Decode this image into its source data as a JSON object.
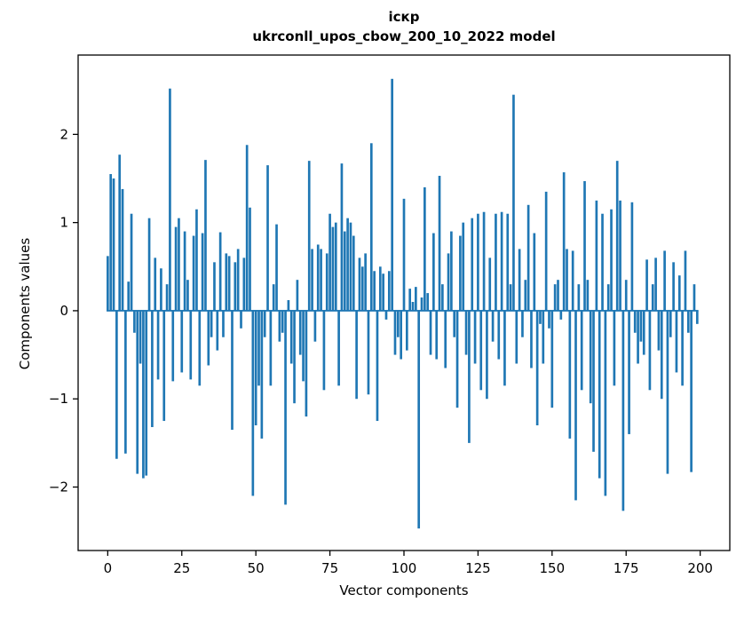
{
  "chart_data": {
    "type": "bar",
    "title_line1": "іскр",
    "title_line2": "ukrconll_upos_cbow_200_10_2022 model",
    "xlabel": "Vector components",
    "ylabel": "Components values",
    "x_ticks": [
      0,
      25,
      50,
      75,
      100,
      125,
      150,
      175,
      200
    ],
    "y_ticks": [
      -2,
      -1,
      0,
      1,
      2
    ],
    "xlim": [
      -10,
      210
    ],
    "ylim": [
      -2.72,
      2.9
    ],
    "bar_color": "#1f77b4",
    "axis_color": "#000000",
    "values": [
      0.62,
      1.55,
      1.5,
      -1.68,
      1.77,
      1.38,
      -1.62,
      0.33,
      1.1,
      -0.25,
      -1.85,
      -0.6,
      -1.9,
      -1.87,
      1.05,
      -1.32,
      0.6,
      -0.78,
      0.48,
      -1.25,
      0.3,
      2.52,
      -0.8,
      0.95,
      1.05,
      -0.7,
      0.9,
      0.35,
      -0.78,
      0.85,
      1.15,
      -0.85,
      0.88,
      1.71,
      -0.62,
      -0.3,
      0.55,
      -0.45,
      0.89,
      -0.3,
      0.65,
      0.62,
      -1.35,
      0.55,
      0.7,
      -0.2,
      0.6,
      1.88,
      1.17,
      -2.1,
      -1.3,
      -0.85,
      -1.45,
      -0.3,
      1.65,
      -0.85,
      0.3,
      0.98,
      -0.35,
      -0.25,
      -2.2,
      0.12,
      -0.6,
      -1.05,
      0.35,
      -0.5,
      -0.8,
      -1.2,
      1.7,
      0.7,
      -0.35,
      0.75,
      0.7,
      -0.9,
      0.65,
      1.1,
      0.95,
      1.0,
      -0.85,
      1.67,
      0.9,
      1.05,
      1.0,
      0.85,
      -1.0,
      0.6,
      0.5,
      0.65,
      -0.95,
      1.9,
      0.45,
      -1.25,
      0.5,
      0.42,
      -0.1,
      0.45,
      2.63,
      -0.5,
      -0.3,
      -0.55,
      1.27,
      -0.45,
      0.25,
      0.1,
      0.27,
      -2.47,
      0.15,
      1.4,
      0.2,
      -0.5,
      0.88,
      -0.55,
      1.53,
      0.3,
      -0.65,
      0.65,
      0.9,
      -0.3,
      -1.1,
      0.85,
      1.0,
      -0.5,
      -1.5,
      1.05,
      -0.6,
      1.1,
      -0.9,
      1.12,
      -1.0,
      0.6,
      -0.35,
      1.1,
      -0.55,
      1.12,
      -0.85,
      1.1,
      0.3,
      2.45,
      -0.6,
      0.7,
      -0.3,
      0.35,
      1.2,
      -0.65,
      0.88,
      -1.3,
      -0.15,
      -0.6,
      1.35,
      -0.2,
      -1.1,
      0.3,
      0.35,
      -0.1,
      1.57,
      0.7,
      -1.45,
      0.68,
      -2.15,
      0.3,
      -0.9,
      1.47,
      0.35,
      -1.05,
      -1.6,
      1.25,
      -1.9,
      1.1,
      -2.1,
      0.3,
      1.15,
      -0.85,
      1.7,
      1.25,
      -2.27,
      0.35,
      -1.4,
      1.23,
      -0.25,
      -0.6,
      -0.35,
      -0.5,
      0.58,
      -0.9,
      0.3,
      0.6,
      -0.45,
      -1.0,
      0.68,
      -1.85,
      -0.3,
      0.55,
      -0.7,
      0.4,
      -0.85,
      0.68,
      -0.25,
      -1.83,
      0.3,
      -0.15
    ]
  }
}
